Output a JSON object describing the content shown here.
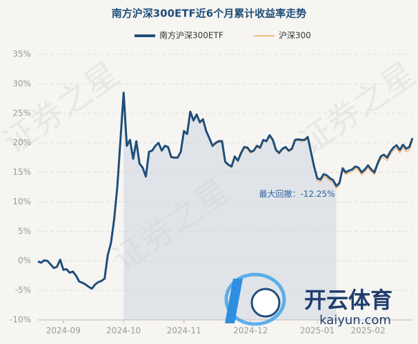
{
  "chart_data": {
    "type": "line",
    "title": "南方沪深300ETF近6个月累计收益率走势",
    "watermark": "证券之星",
    "annotation": "最大回撤：-12.25%",
    "logo": {
      "name": "开云体育",
      "url": "kaiyun.com"
    },
    "categories": [
      null,
      null,
      null,
      null,
      null,
      null,
      null,
      null,
      "2024-09",
      null,
      null,
      null,
      null,
      null,
      null,
      null,
      null,
      null,
      null,
      null,
      null,
      null,
      null,
      null,
      null,
      null,
      null,
      "2024-10",
      null,
      null,
      null,
      null,
      null,
      null,
      null,
      null,
      null,
      null,
      null,
      null,
      null,
      null,
      null,
      null,
      null,
      null,
      "2024-11",
      null,
      null,
      null,
      null,
      null,
      null,
      null,
      null,
      null,
      null,
      null,
      null,
      null,
      null,
      null,
      null,
      null,
      null,
      null,
      null,
      "2024-12",
      null,
      null,
      null,
      null,
      null,
      null,
      null,
      null,
      null,
      null,
      null,
      null,
      null,
      null,
      null,
      null,
      null,
      null,
      null,
      null,
      "2025-01",
      null,
      null,
      null,
      null,
      null,
      null,
      null,
      null,
      null,
      null,
      null,
      null,
      null,
      null,
      null,
      "2025-02",
      null,
      null,
      null,
      null,
      null,
      null,
      null,
      null,
      null,
      null,
      null,
      null,
      null,
      null
    ],
    "series": [
      {
        "name": "南方沪深300ETF",
        "color": "#1f4e79",
        "values": [
          -0.1,
          -0.3,
          0.1,
          0.0,
          -0.6,
          -1.2,
          -1.0,
          0.2,
          -1.5,
          -1.4,
          -2.0,
          -1.8,
          -2.5,
          -3.5,
          -3.7,
          -4.0,
          -4.4,
          -4.7,
          -4.0,
          -3.6,
          -3.4,
          -3.0,
          1.0,
          3.0,
          7.0,
          12.5,
          20.5,
          28.5,
          19.5,
          20.5,
          17.3,
          20.3,
          16.5,
          15.8,
          14.3,
          18.5,
          18.7,
          19.5,
          20.0,
          18.7,
          19.5,
          19.3,
          17.6,
          17.5,
          17.5,
          18.5,
          22.0,
          21.5,
          25.3,
          23.8,
          24.8,
          23.5,
          24.0,
          22.0,
          20.8,
          19.5,
          20.0,
          20.3,
          20.3,
          16.8,
          16.3,
          16.0,
          17.7,
          17.0,
          18.3,
          19.3,
          19.2,
          18.5,
          18.7,
          19.5,
          19.2,
          20.5,
          20.3,
          21.3,
          20.5,
          18.8,
          18.3,
          19.0,
          19.3,
          18.7,
          19.0,
          20.5,
          20.6,
          20.5,
          20.5,
          21.0,
          18.5,
          16.0,
          14.0,
          13.8,
          14.7,
          14.5,
          14.0,
          13.7,
          12.7,
          13.2,
          15.7,
          15.0,
          15.3,
          15.5,
          16.0,
          15.8,
          15.0,
          15.5,
          16.2,
          15.5,
          15.0,
          16.5,
          17.7,
          18.0,
          17.5,
          18.5,
          19.2,
          19.6,
          18.8,
          19.7,
          19.0,
          19.3,
          20.8
        ]
      },
      {
        "name": "沪深300",
        "color": "#f0a860",
        "values": [
          -0.1,
          -0.3,
          0.1,
          0.0,
          -0.6,
          -1.2,
          -1.0,
          0.2,
          -1.5,
          -1.4,
          -2.0,
          -1.8,
          -2.5,
          -3.5,
          -3.7,
          -4.0,
          -4.4,
          -4.7,
          -4.0,
          -3.6,
          -3.4,
          -3.0,
          1.0,
          3.0,
          7.0,
          12.4,
          20.4,
          28.3,
          19.4,
          20.4,
          17.2,
          20.2,
          16.4,
          15.7,
          14.2,
          18.4,
          18.6,
          19.4,
          19.9,
          18.6,
          19.4,
          19.2,
          17.5,
          17.4,
          17.4,
          18.4,
          21.9,
          21.4,
          25.1,
          23.6,
          24.6,
          23.3,
          23.8,
          21.8,
          20.6,
          19.3,
          19.8,
          20.1,
          20.1,
          16.6,
          16.1,
          15.8,
          17.5,
          16.8,
          18.1,
          19.1,
          19.0,
          18.3,
          18.5,
          19.3,
          19.0,
          20.3,
          20.1,
          21.1,
          20.3,
          18.6,
          18.1,
          18.8,
          19.1,
          18.5,
          18.8,
          20.3,
          20.4,
          20.3,
          20.3,
          20.8,
          18.2,
          15.7,
          13.6,
          13.4,
          14.3,
          14.1,
          13.6,
          13.3,
          12.3,
          12.8,
          15.3,
          14.6,
          14.9,
          15.1,
          15.6,
          15.4,
          14.6,
          15.1,
          15.8,
          15.1,
          14.6,
          16.1,
          17.3,
          17.5,
          17.0,
          18.0,
          18.7,
          19.1,
          18.3,
          19.2,
          18.5,
          18.8,
          20.3
        ]
      }
    ],
    "ylim": [
      -10,
      35
    ],
    "yticks": [
      {
        "value": -10,
        "label": "-10%"
      },
      {
        "value": -5,
        "label": "-5%"
      },
      {
        "value": 0,
        "label": "0%"
      },
      {
        "value": 5,
        "label": "5%"
      },
      {
        "value": 10,
        "label": "10%"
      },
      {
        "value": 15,
        "label": "15%"
      },
      {
        "value": 20,
        "label": "20%"
      },
      {
        "value": 25,
        "label": "25%"
      },
      {
        "value": 30,
        "label": "30%"
      },
      {
        "value": 35,
        "label": "35%"
      }
    ],
    "grid": true
  }
}
